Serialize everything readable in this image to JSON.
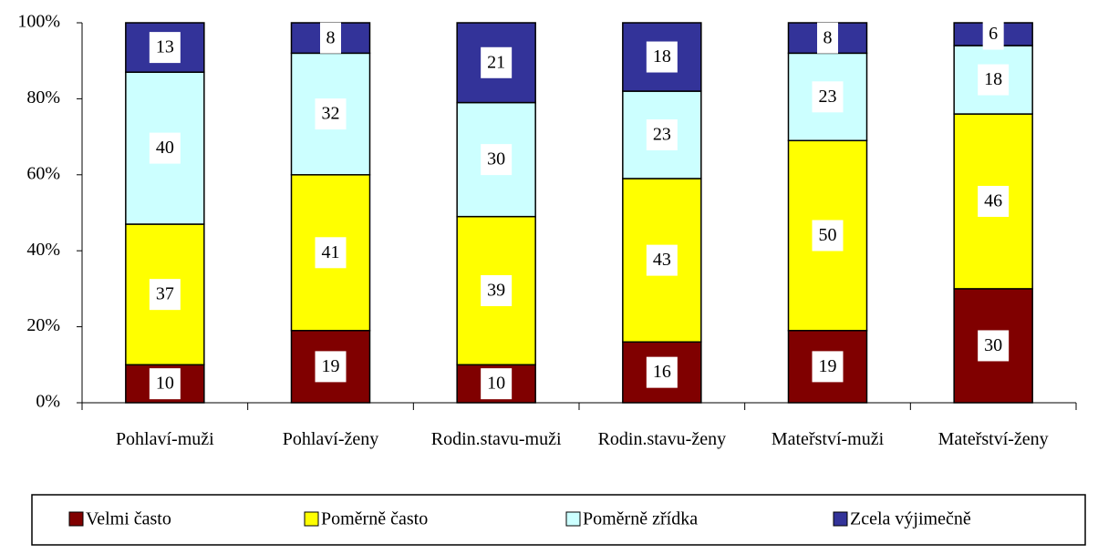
{
  "chart_data": {
    "type": "stacked_bar",
    "categories": [
      "Pohlaví-muži",
      "Pohlaví-ženy",
      "Rodin.stavu-muži",
      "Rodin.stavu-ženy",
      "Mateřství-muži",
      "Mateřství-ženy"
    ],
    "series": [
      {
        "name": "Velmi často",
        "color": "#800000",
        "values": [
          10,
          19,
          10,
          16,
          19,
          30
        ]
      },
      {
        "name": "Poměrně často",
        "color": "#ffff00",
        "values": [
          37,
          41,
          39,
          43,
          50,
          46
        ]
      },
      {
        "name": "Poměrně zřídka",
        "color": "#ccffff",
        "values": [
          40,
          32,
          30,
          23,
          23,
          18
        ]
      },
      {
        "name": "Zcela výjimečně",
        "color": "#333399",
        "values": [
          13,
          8,
          21,
          18,
          8,
          6
        ]
      }
    ],
    "ylim": [
      0,
      100
    ],
    "yticks": [
      {
        "value": 0,
        "label": "0%"
      },
      {
        "value": 20,
        "label": "20%"
      },
      {
        "value": 40,
        "label": "40%"
      },
      {
        "value": 60,
        "label": "60%"
      },
      {
        "value": 80,
        "label": "80%"
      },
      {
        "value": 100,
        "label": "100%"
      }
    ],
    "legend": "bottom"
  }
}
